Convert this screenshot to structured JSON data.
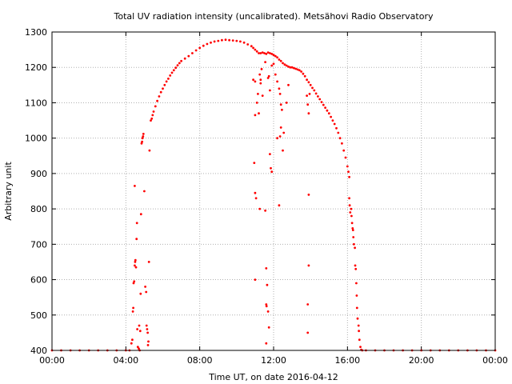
{
  "chart_data": {
    "type": "scatter",
    "title": "Total UV radiation intensity (uncalibrated). Metsähovi Radio Observatory",
    "xlabel": "Time UT, on date 2016-04-12",
    "ylabel": "Arbitrary unit",
    "x_unit": "hours UT",
    "xlim": [
      0,
      24
    ],
    "ylim": [
      400,
      1300
    ],
    "x_tick_values": [
      0,
      4,
      8,
      12,
      16,
      20,
      24
    ],
    "x_tick_labels": [
      "00:00",
      "04:00",
      "08:00",
      "12:00",
      "16:00",
      "20:00",
      "00:00"
    ],
    "y_ticks": [
      400,
      500,
      600,
      700,
      800,
      900,
      1000,
      1100,
      1200,
      1300
    ],
    "grid": true,
    "legend": "none",
    "series": [
      {
        "color": "#ff0000",
        "points": [
          [
            0.0,
            400
          ],
          [
            0.5,
            400
          ],
          [
            1.0,
            400
          ],
          [
            1.5,
            400
          ],
          [
            2.0,
            400
          ],
          [
            2.5,
            400
          ],
          [
            3.0,
            400
          ],
          [
            3.5,
            400
          ],
          [
            4.0,
            400
          ],
          [
            4.2,
            400
          ],
          [
            4.3,
            420
          ],
          [
            4.35,
            430
          ],
          [
            4.38,
            510
          ],
          [
            4.4,
            520
          ],
          [
            4.42,
            590
          ],
          [
            4.45,
            595
          ],
          [
            4.48,
            640
          ],
          [
            4.5,
            650
          ],
          [
            4.52,
            655
          ],
          [
            4.55,
            635
          ],
          [
            4.58,
            715
          ],
          [
            4.6,
            760
          ],
          [
            4.48,
            865
          ],
          [
            4.62,
            460
          ],
          [
            4.65,
            410
          ],
          [
            4.7,
            405
          ],
          [
            4.72,
            470
          ],
          [
            4.75,
            400
          ],
          [
            4.78,
            455
          ],
          [
            4.8,
            560
          ],
          [
            4.82,
            785
          ],
          [
            4.85,
            985
          ],
          [
            4.88,
            990
          ],
          [
            4.9,
            1000
          ],
          [
            4.93,
            1005
          ],
          [
            4.95,
            1012
          ],
          [
            5.0,
            850
          ],
          [
            5.05,
            580
          ],
          [
            5.1,
            565
          ],
          [
            5.12,
            470
          ],
          [
            5.15,
            460
          ],
          [
            5.18,
            450
          ],
          [
            5.2,
            415
          ],
          [
            5.22,
            425
          ],
          [
            5.25,
            650
          ],
          [
            5.28,
            965
          ],
          [
            5.35,
            1050
          ],
          [
            5.4,
            1055
          ],
          [
            5.45,
            1065
          ],
          [
            5.5,
            1075
          ],
          [
            5.6,
            1090
          ],
          [
            5.7,
            1105
          ],
          [
            5.8,
            1118
          ],
          [
            5.9,
            1130
          ],
          [
            6.0,
            1140
          ],
          [
            6.1,
            1150
          ],
          [
            6.2,
            1160
          ],
          [
            6.3,
            1168
          ],
          [
            6.4,
            1177
          ],
          [
            6.5,
            1185
          ],
          [
            6.6,
            1192
          ],
          [
            6.7,
            1199
          ],
          [
            6.8,
            1206
          ],
          [
            6.9,
            1212
          ],
          [
            7.0,
            1218
          ],
          [
            7.2,
            1225
          ],
          [
            7.4,
            1232
          ],
          [
            7.6,
            1240
          ],
          [
            7.8,
            1248
          ],
          [
            8.0,
            1255
          ],
          [
            8.2,
            1261
          ],
          [
            8.4,
            1266
          ],
          [
            8.6,
            1270
          ],
          [
            8.8,
            1273
          ],
          [
            9.0,
            1275
          ],
          [
            9.2,
            1277
          ],
          [
            9.4,
            1278
          ],
          [
            9.6,
            1277
          ],
          [
            9.8,
            1276
          ],
          [
            10.0,
            1275
          ],
          [
            10.2,
            1273
          ],
          [
            10.4,
            1270
          ],
          [
            10.6,
            1265
          ],
          [
            10.8,
            1260
          ],
          [
            10.9,
            1255
          ],
          [
            11.0,
            1250
          ],
          [
            11.1,
            1245
          ],
          [
            11.2,
            1240
          ],
          [
            11.3,
            1240
          ],
          [
            11.4,
            1242
          ],
          [
            11.5,
            1240
          ],
          [
            11.6,
            1238
          ],
          [
            11.7,
            1242
          ],
          [
            11.8,
            1240
          ],
          [
            11.9,
            1238
          ],
          [
            12.0,
            1235
          ],
          [
            12.1,
            1232
          ],
          [
            12.2,
            1228
          ],
          [
            12.3,
            1222
          ],
          [
            12.4,
            1218
          ],
          [
            12.5,
            1212
          ],
          [
            12.6,
            1208
          ],
          [
            12.7,
            1205
          ],
          [
            12.8,
            1202
          ],
          [
            12.9,
            1200
          ],
          [
            13.0,
            1200
          ],
          [
            13.1,
            1198
          ],
          [
            13.2,
            1196
          ],
          [
            13.3,
            1194
          ],
          [
            13.4,
            1192
          ],
          [
            13.5,
            1188
          ],
          [
            13.6,
            1182
          ],
          [
            13.7,
            1175
          ],
          [
            13.8,
            1165
          ],
          [
            13.9,
            1158
          ],
          [
            14.0,
            1150
          ],
          [
            14.1,
            1142
          ],
          [
            14.2,
            1135
          ],
          [
            14.3,
            1126
          ],
          [
            14.4,
            1118
          ],
          [
            14.5,
            1110
          ],
          [
            14.6,
            1102
          ],
          [
            14.7,
            1094
          ],
          [
            14.8,
            1086
          ],
          [
            14.9,
            1078
          ],
          [
            15.0,
            1070
          ],
          [
            15.1,
            1060
          ],
          [
            15.2,
            1050
          ],
          [
            15.3,
            1040
          ],
          [
            15.4,
            1028
          ],
          [
            15.5,
            1015
          ],
          [
            15.6,
            1000
          ],
          [
            15.7,
            985
          ],
          [
            15.8,
            965
          ],
          [
            15.9,
            945
          ],
          [
            16.0,
            920
          ],
          [
            16.05,
            905
          ],
          [
            16.1,
            890
          ],
          [
            10.9,
            1165
          ],
          [
            11.0,
            1160
          ],
          [
            11.1,
            1100
          ],
          [
            11.0,
            1065
          ],
          [
            11.3,
            1165
          ],
          [
            11.15,
            1125
          ],
          [
            11.25,
            1180
          ],
          [
            11.35,
            1195
          ],
          [
            11.2,
            1070
          ],
          [
            10.95,
            930
          ],
          [
            11.0,
            845
          ],
          [
            11.05,
            830
          ],
          [
            11.25,
            800
          ],
          [
            11.55,
            795
          ],
          [
            11.0,
            600
          ],
          [
            11.6,
            632
          ],
          [
            11.65,
            585
          ],
          [
            11.6,
            530
          ],
          [
            11.62,
            525
          ],
          [
            11.7,
            510
          ],
          [
            11.75,
            465
          ],
          [
            11.6,
            420
          ],
          [
            11.8,
            955
          ],
          [
            11.85,
            915
          ],
          [
            11.9,
            905
          ],
          [
            11.3,
            1155
          ],
          [
            11.4,
            1120
          ],
          [
            11.55,
            1215
          ],
          [
            11.7,
            1170
          ],
          [
            11.75,
            1175
          ],
          [
            11.8,
            1135
          ],
          [
            11.9,
            1205
          ],
          [
            12.0,
            1210
          ],
          [
            12.1,
            1180
          ],
          [
            12.2,
            1160
          ],
          [
            12.3,
            1140
          ],
          [
            12.35,
            1125
          ],
          [
            12.4,
            1095
          ],
          [
            12.45,
            1080
          ],
          [
            12.2,
            1000
          ],
          [
            12.35,
            1005
          ],
          [
            12.5,
            965
          ],
          [
            12.4,
            1030
          ],
          [
            12.3,
            810
          ],
          [
            12.55,
            1015
          ],
          [
            12.7,
            1100
          ],
          [
            12.8,
            1150
          ],
          [
            13.8,
            1120
          ],
          [
            13.85,
            1095
          ],
          [
            13.9,
            1070
          ],
          [
            13.9,
            840
          ],
          [
            13.9,
            640
          ],
          [
            13.85,
            530
          ],
          [
            13.85,
            450
          ],
          [
            13.95,
            1125
          ],
          [
            16.1,
            830
          ],
          [
            16.12,
            810
          ],
          [
            16.15,
            790
          ],
          [
            16.2,
            800
          ],
          [
            16.22,
            780
          ],
          [
            16.25,
            760
          ],
          [
            16.28,
            745
          ],
          [
            16.3,
            740
          ],
          [
            16.32,
            720
          ],
          [
            16.35,
            700
          ],
          [
            16.4,
            690
          ],
          [
            16.42,
            640
          ],
          [
            16.45,
            630
          ],
          [
            16.48,
            590
          ],
          [
            16.5,
            555
          ],
          [
            16.52,
            520
          ],
          [
            16.55,
            490
          ],
          [
            16.6,
            470
          ],
          [
            16.62,
            455
          ],
          [
            16.65,
            430
          ],
          [
            16.7,
            410
          ],
          [
            16.75,
            402
          ],
          [
            16.8,
            400
          ],
          [
            17.0,
            400
          ],
          [
            17.5,
            400
          ],
          [
            18.0,
            400
          ],
          [
            18.5,
            400
          ],
          [
            19.0,
            400
          ],
          [
            19.5,
            400
          ],
          [
            20.0,
            400
          ],
          [
            20.5,
            400
          ],
          [
            21.0,
            400
          ],
          [
            21.5,
            400
          ],
          [
            22.0,
            400
          ],
          [
            22.5,
            400
          ],
          [
            23.0,
            400
          ],
          [
            23.5,
            400
          ],
          [
            24.0,
            400
          ]
        ]
      }
    ]
  }
}
